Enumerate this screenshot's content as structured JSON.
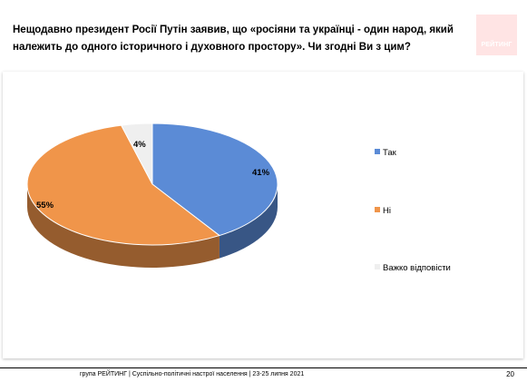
{
  "title": "Нещодавно президент Росії Путін заявив, що «росіяни та українці - один народ, який\nналежить до одного історичного і духовного простору». Чи згодні Ви з цим?",
  "logo_text": "РЕЙТИНГ",
  "footer": "група РЕЙТИНГ | Суспільно-політичні настрої населення | 23-25 липня 2021",
  "page_number": "20",
  "chart_data": {
    "type": "pie",
    "style": "3d",
    "title": "Нещодавно президент Росії Путін заявив, що «росіяни та українці - один народ, який належить до одного історичного і духовного простору». Чи згодні Ви з цим?",
    "legend_position": "right",
    "slices": [
      {
        "label": "Так",
        "value": 41,
        "display": "41%",
        "color": "#5b8bd6"
      },
      {
        "label": "Ні",
        "value": 55,
        "display": "55%",
        "color": "#f0954a"
      },
      {
        "label": "Важко відповісти",
        "value": 4,
        "display": "4%",
        "color": "#efefef"
      }
    ]
  }
}
